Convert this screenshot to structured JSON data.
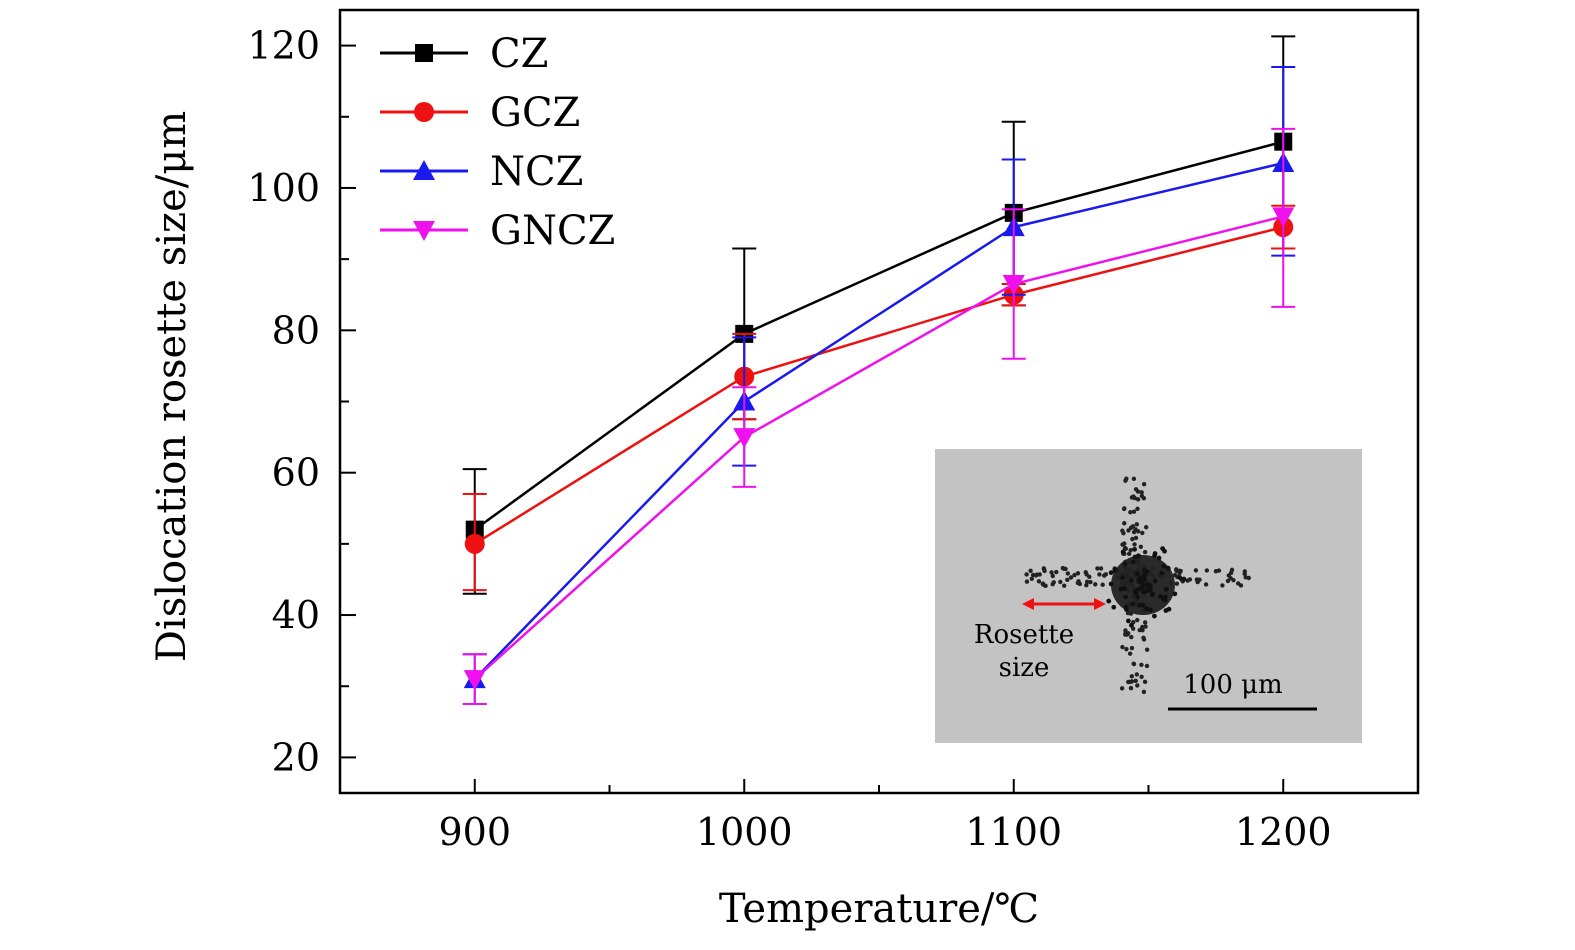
{
  "chart_data": {
    "type": "line",
    "title": "",
    "xlabel": "Temperature/℃",
    "ylabel": "Dislocation rosette size/μm",
    "xlim": [
      850,
      1250
    ],
    "ylim": [
      15,
      125
    ],
    "x_ticks": [
      900,
      1000,
      1100,
      1200
    ],
    "y_ticks": [
      20,
      40,
      60,
      80,
      100,
      120
    ],
    "x_tick_labels": [
      "900",
      "1000",
      "1100",
      "1200"
    ],
    "y_tick_labels": [
      "20",
      "40",
      "60",
      "80",
      "100",
      "120"
    ],
    "grid": false,
    "legend_position": "top-left",
    "x": [
      900,
      1000,
      1100,
      1200
    ],
    "series": [
      {
        "name": "CZ",
        "color": "#000000",
        "marker": "square",
        "values": [
          52,
          79.5,
          96.5,
          106.5
        ],
        "error_low": [
          43,
          67.5,
          83.5,
          91.5
        ],
        "error_high": [
          60.5,
          91.5,
          109.3,
          121.3
        ]
      },
      {
        "name": "GCZ",
        "color": "#ee1111",
        "marker": "circle",
        "values": [
          50,
          73.5,
          85,
          94.5
        ],
        "error_low": [
          43.5,
          67.5,
          83.5,
          91.5
        ],
        "error_high": [
          57,
          79.5,
          86.5,
          97.5
        ]
      },
      {
        "name": "NCZ",
        "color": "#1a1aee",
        "marker": "triangle-up",
        "values": [
          31,
          70,
          94.5,
          103.5
        ],
        "error_low": [
          27.5,
          61,
          85,
          90.5
        ],
        "error_high": [
          34.5,
          79,
          104,
          117
        ]
      },
      {
        "name": "GNCZ",
        "color": "#ee11ee",
        "marker": "triangle-down",
        "values": [
          31,
          65,
          86.5,
          96
        ],
        "error_low": [
          27.5,
          58,
          76,
          83.3
        ],
        "error_high": [
          34.5,
          72,
          97,
          108.3
        ]
      }
    ],
    "inset": {
      "description_label": "Rosette size",
      "label_lines": [
        "Rosette",
        "size"
      ],
      "scale_bar_label": "100 μm",
      "arrow_color": "#ee1111"
    }
  }
}
